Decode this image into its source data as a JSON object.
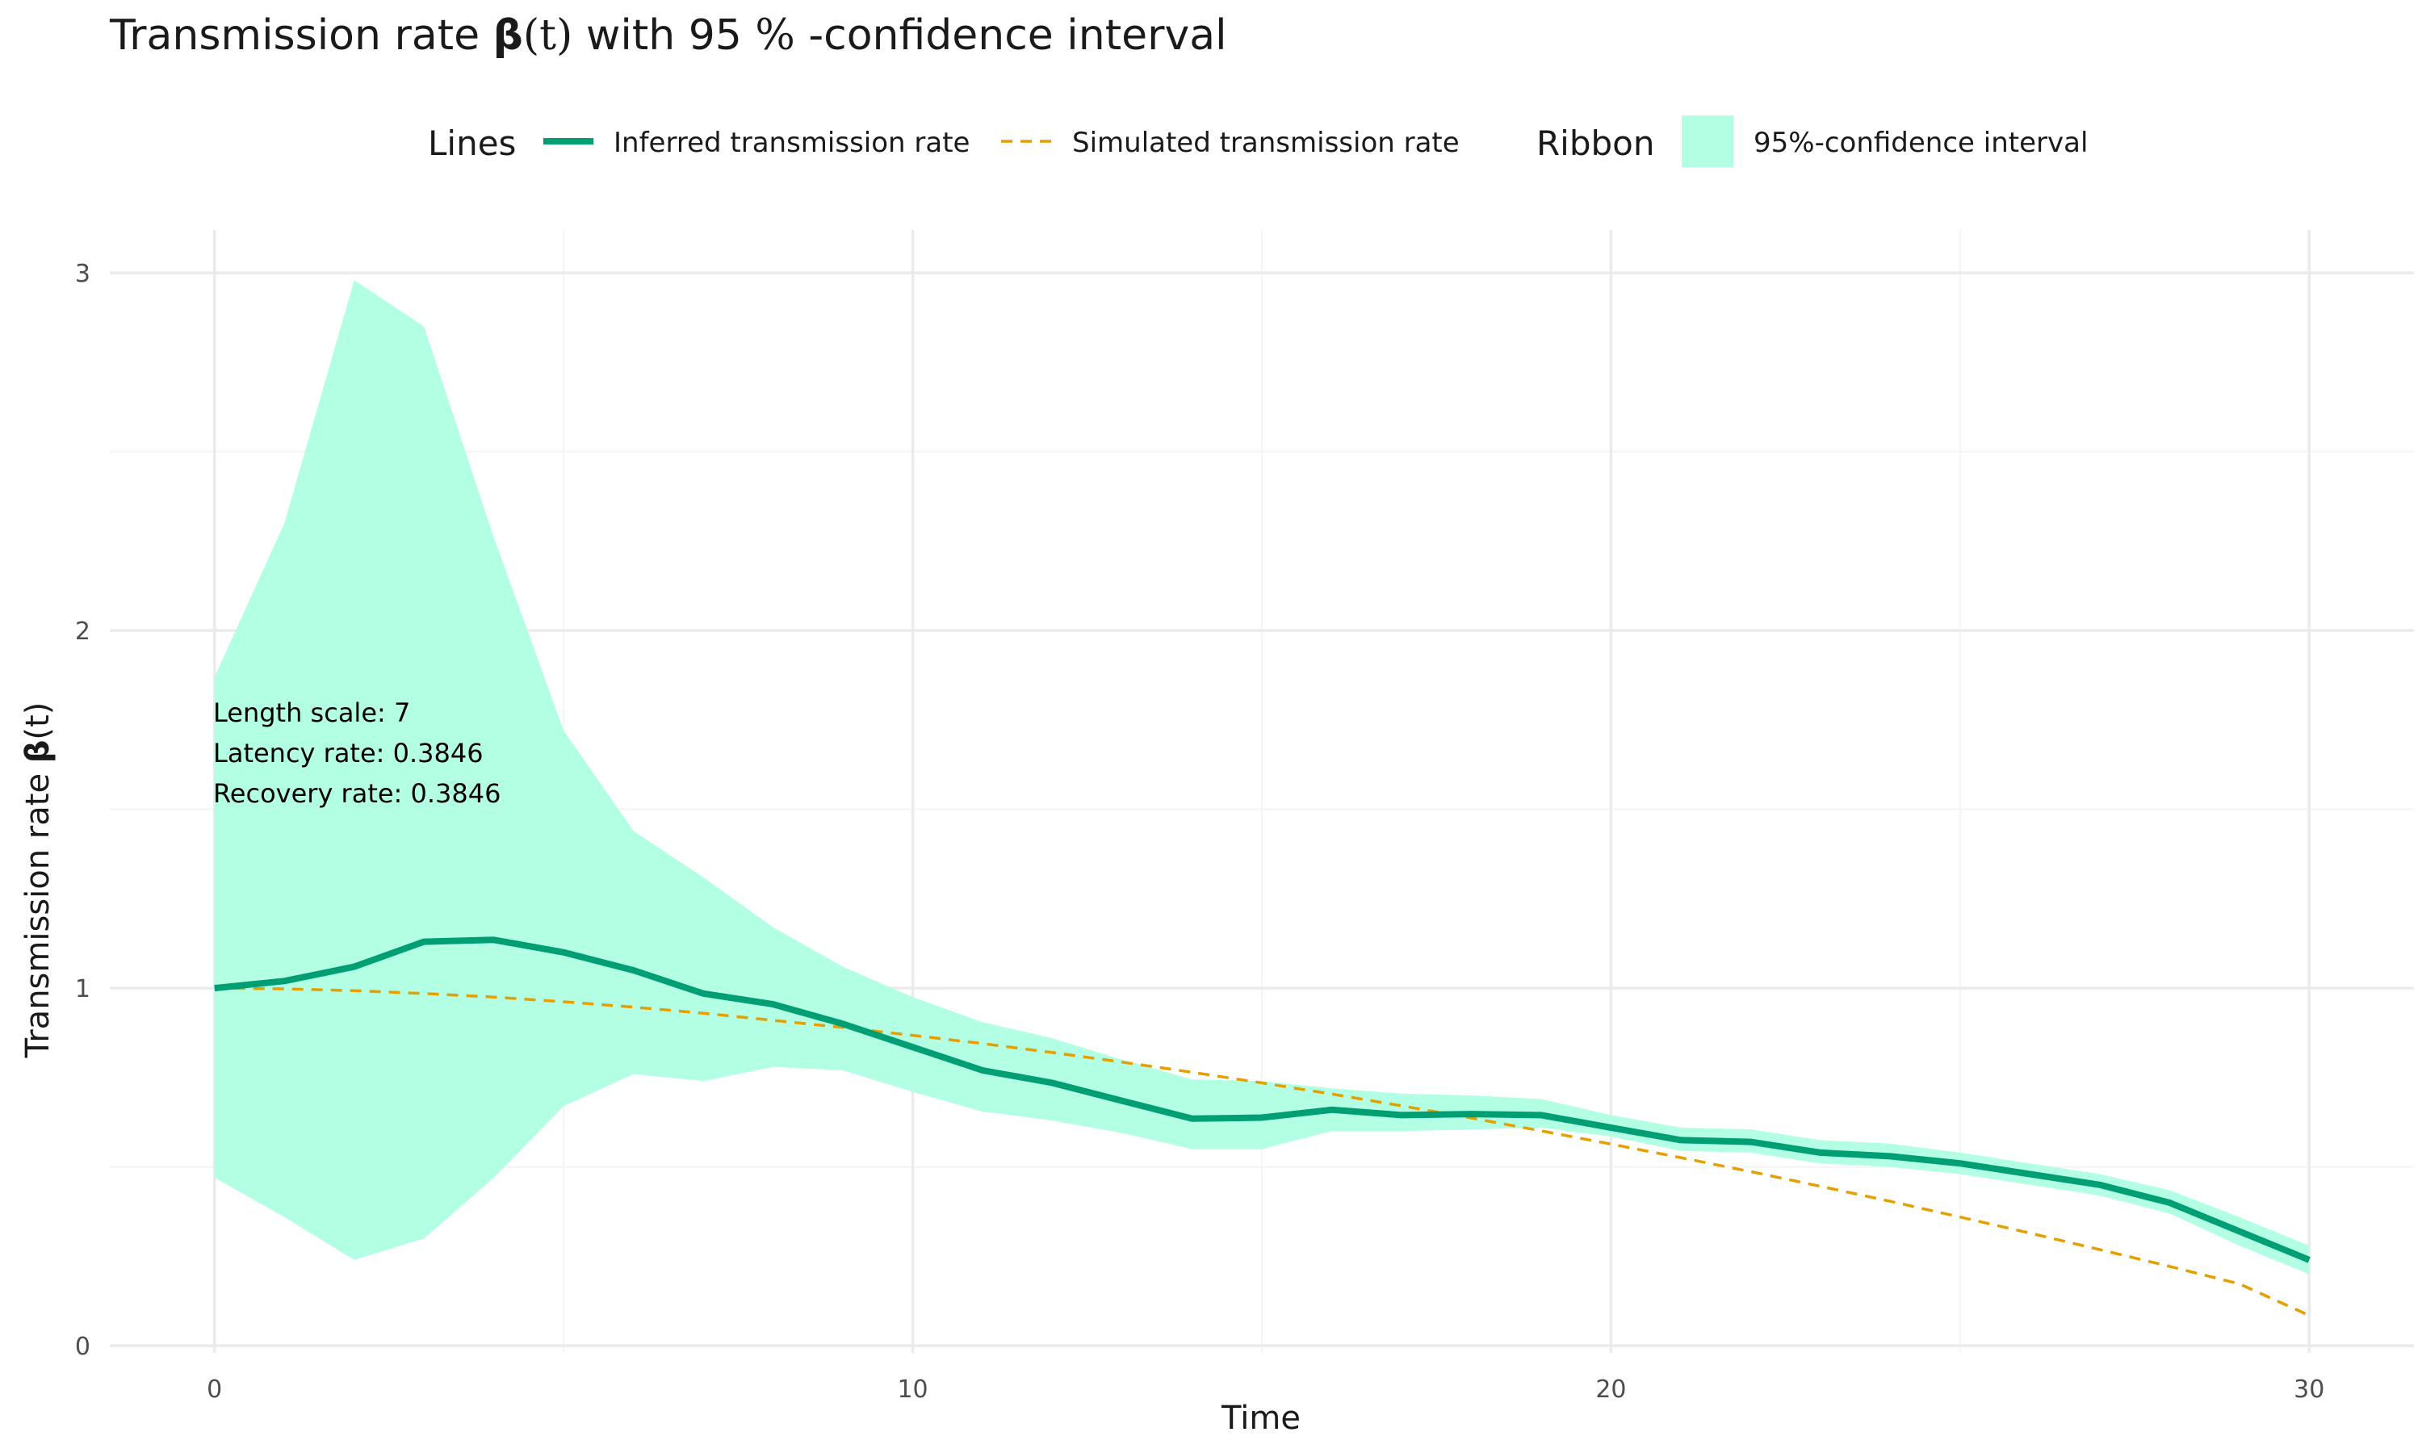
{
  "title": {
    "prefix": "Transmission rate ",
    "beta": "β",
    "arg": "(t)",
    "suffix": " with 95 ",
    "percent": "%",
    "rest": " -confidence interval"
  },
  "legend": {
    "lines_title": "Lines",
    "ribbon_title": "Ribbon",
    "inferred_label": "Inferred transmission rate",
    "simulated_label": "Simulated transmission rate",
    "ribbon_label": "95%-confidence interval"
  },
  "annotation": [
    "Length scale: 7",
    "Latency rate: 0.3846",
    "Recovery rate: 0.3846"
  ],
  "colors": {
    "inferred": "#009E73",
    "simulated": "#E69F00",
    "ribbon": "#B2FFE4",
    "grid_major": "#EBEBEB",
    "grid_minor": "#F4F4F4"
  },
  "chart_data": {
    "type": "line",
    "title": "Transmission rate β(t) with 95 % -confidence interval",
    "xlabel": "Time",
    "ylabel": "Transmission rate β(t)",
    "xlim": [
      -1.5,
      31.5
    ],
    "ylim": [
      -0.02,
      3.12
    ],
    "x_ticks": [
      0,
      10,
      20,
      30
    ],
    "y_ticks": [
      0,
      1,
      2,
      3
    ],
    "grid": true,
    "legend_position": "top",
    "x": [
      0,
      1,
      2,
      3,
      4,
      5,
      6,
      7,
      8,
      9,
      10,
      11,
      12,
      13,
      14,
      15,
      16,
      17,
      18,
      19,
      20,
      21,
      22,
      23,
      24,
      25,
      26,
      27,
      28,
      29,
      30
    ],
    "series": [
      {
        "name": "Inferred transmission rate",
        "style": "solid",
        "values": [
          1.0,
          1.02,
          1.06,
          1.13,
          1.135,
          1.1,
          1.05,
          0.985,
          0.955,
          0.9,
          0.835,
          0.77,
          0.735,
          0.685,
          0.635,
          0.638,
          0.66,
          0.645,
          0.648,
          0.645,
          0.61,
          0.575,
          0.57,
          0.54,
          0.53,
          0.51,
          0.48,
          0.45,
          0.4,
          0.32,
          0.24
        ]
      },
      {
        "name": "Simulated transmission rate",
        "style": "dashed",
        "values": [
          1.0,
          0.998,
          0.993,
          0.985,
          0.975,
          0.962,
          0.947,
          0.93,
          0.91,
          0.89,
          0.868,
          0.845,
          0.82,
          0.793,
          0.765,
          0.735,
          0.704,
          0.671,
          0.637,
          0.601,
          0.564,
          0.526,
          0.487,
          0.446,
          0.404,
          0.36,
          0.315,
          0.269,
          0.222,
          0.173,
          0.085
        ]
      }
    ],
    "ribbon": {
      "name": "95%-confidence interval",
      "lower": [
        0.47,
        0.36,
        0.24,
        0.3,
        0.47,
        0.67,
        0.76,
        0.74,
        0.78,
        0.77,
        0.71,
        0.655,
        0.63,
        0.595,
        0.55,
        0.55,
        0.6,
        0.6,
        0.605,
        0.61,
        0.585,
        0.545,
        0.54,
        0.51,
        0.5,
        0.48,
        0.45,
        0.42,
        0.37,
        0.28,
        0.2
      ],
      "upper": [
        1.87,
        2.3,
        2.98,
        2.85,
        2.26,
        1.72,
        1.44,
        1.31,
        1.17,
        1.06,
        0.975,
        0.905,
        0.86,
        0.8,
        0.745,
        0.74,
        0.72,
        0.705,
        0.7,
        0.69,
        0.645,
        0.61,
        0.605,
        0.575,
        0.565,
        0.54,
        0.51,
        0.48,
        0.435,
        0.36,
        0.28
      ]
    }
  }
}
